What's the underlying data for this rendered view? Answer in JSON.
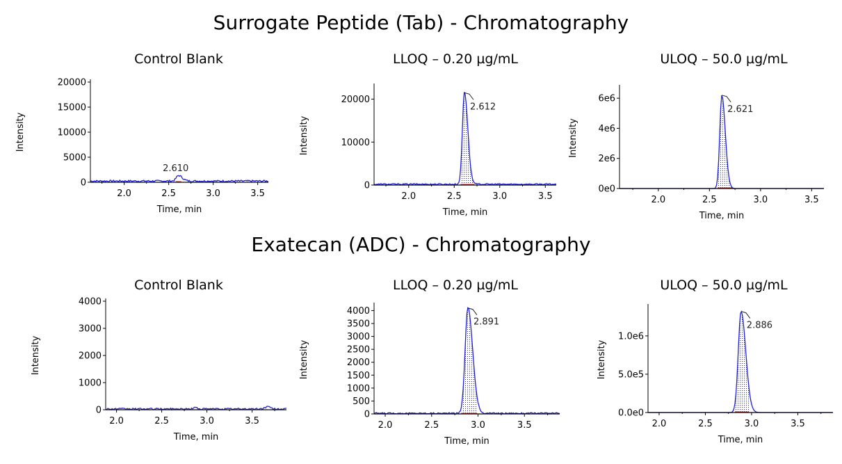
{
  "sections": [
    {
      "title": "Surrogate Peptide (Tab) - Chromatography"
    },
    {
      "title": "Exatecan (ADC) - Chromatography"
    }
  ],
  "colors": {
    "trace": "#1f1fd6",
    "baseline": "#e03030",
    "axis": "#000000"
  },
  "chart_data": [
    {
      "type": "line",
      "title": "Control Blank",
      "xlabel": "Time, min",
      "ylabel": "Intensity",
      "xlim": [
        1.62,
        3.62
      ],
      "ylim": [
        0,
        20000
      ],
      "xticks": [
        2.0,
        2.5,
        3.0,
        3.5
      ],
      "xtick_labels": [
        "2.0",
        "2.5",
        "3.0",
        "3.5"
      ],
      "yticks": [
        0,
        5000,
        10000,
        15000,
        20000
      ],
      "ytick_labels": [
        "0",
        "5000",
        "10000",
        "15000",
        "20000"
      ],
      "peak": {
        "rt": 2.61,
        "label": "2.610",
        "height": 1100,
        "width": 0.025,
        "start": 2.58,
        "end": 2.64,
        "shaded": false
      },
      "noise": {
        "level": 250,
        "amp": 350
      },
      "baseline_integration": {
        "start": 2.58,
        "end": 2.64
      }
    },
    {
      "type": "line",
      "title": "LLOQ – 0.20 µg/mL",
      "xlabel": "Time, min",
      "ylabel": "Intensity",
      "xlim": [
        1.62,
        3.62
      ],
      "ylim": [
        0,
        23000
      ],
      "xticks": [
        2.0,
        2.5,
        3.0,
        3.5
      ],
      "xtick_labels": [
        "2.0",
        "2.5",
        "3.0",
        "3.5"
      ],
      "yticks": [
        0,
        10000,
        20000
      ],
      "ytick_labels": [
        "0",
        "10000",
        "20000"
      ],
      "peak": {
        "rt": 2.612,
        "label": "2.612",
        "height": 21500,
        "width": 0.022,
        "start": 2.57,
        "end": 2.72,
        "shaded": true
      },
      "noise": {
        "level": 200,
        "amp": 300
      },
      "baseline_integration": {
        "start": 2.57,
        "end": 2.72
      }
    },
    {
      "type": "line",
      "title": "ULOQ – 50.0 µg/mL",
      "xlabel": "Time, min",
      "ylabel": "Intensity",
      "xlim": [
        1.62,
        3.62
      ],
      "ylim": [
        0,
        6700000
      ],
      "xticks": [
        2.0,
        2.5,
        3.0,
        3.5
      ],
      "xtick_labels": [
        "2.0",
        "2.5",
        "3.0",
        "3.5"
      ],
      "yticks": [
        0,
        2000000,
        4000000,
        6000000
      ],
      "ytick_labels": [
        "0e0",
        "2e6",
        "4e6",
        "6e6"
      ],
      "peak": {
        "rt": 2.621,
        "label": "2.621",
        "height": 6200000,
        "width": 0.02,
        "start": 2.58,
        "end": 2.72,
        "shaded": true
      },
      "noise": {
        "level": 0,
        "amp": 0
      },
      "baseline_integration": {
        "start": 2.58,
        "end": 2.72
      }
    },
    {
      "type": "line",
      "title": "Control Blank",
      "xlabel": "Time, min",
      "ylabel": "Intensity",
      "xlim": [
        1.88,
        3.88
      ],
      "ylim": [
        0,
        4000
      ],
      "xticks": [
        2.0,
        2.5,
        3.0,
        3.5
      ],
      "xtick_labels": [
        "2.0",
        "2.5",
        "3.0",
        "3.5"
      ],
      "yticks": [
        0,
        1000,
        2000,
        3000,
        4000
      ],
      "ytick_labels": [
        "0",
        "1000",
        "2000",
        "3000",
        "4000"
      ],
      "peak": null,
      "noise": {
        "level": 30,
        "amp": 60
      },
      "baseline_integration": null
    },
    {
      "type": "line",
      "title": "LLOQ – 0.20 µg/mL",
      "xlabel": "Time, min",
      "ylabel": "Intensity",
      "xlim": [
        1.88,
        3.88
      ],
      "ylim": [
        0,
        4200
      ],
      "xticks": [
        2.0,
        2.5,
        3.0,
        3.5
      ],
      "xtick_labels": [
        "2.0",
        "2.5",
        "3.0",
        "3.5"
      ],
      "yticks": [
        0,
        500,
        1000,
        1500,
        2000,
        2500,
        3000,
        3500,
        4000
      ],
      "ytick_labels": [
        "0",
        "500",
        "1000",
        "1500",
        "2000",
        "2500",
        "3000",
        "3500",
        "4000"
      ],
      "peak": {
        "rt": 2.891,
        "label": "2.891",
        "height": 4100,
        "width": 0.03,
        "start": 2.82,
        "end": 2.99,
        "shaded": true
      },
      "noise": {
        "level": 25,
        "amp": 50
      },
      "baseline_integration": {
        "start": 2.82,
        "end": 2.99
      }
    },
    {
      "type": "line",
      "title": "ULOQ – 50.0 µg/mL",
      "xlabel": "Time, min",
      "ylabel": "Intensity",
      "xlim": [
        1.88,
        3.88
      ],
      "ylim": [
        0,
        1380000
      ],
      "xticks": [
        2.0,
        2.5,
        3.0,
        3.5
      ],
      "xtick_labels": [
        "2.0",
        "2.5",
        "3.0",
        "3.5"
      ],
      "yticks": [
        0,
        500000,
        1000000
      ],
      "ytick_labels": [
        "0.0e0",
        "5.0e5",
        "1.0e6"
      ],
      "peak": {
        "rt": 2.886,
        "label": "2.886",
        "height": 1320000,
        "width": 0.03,
        "start": 2.82,
        "end": 2.97,
        "shaded": true
      },
      "noise": {
        "level": 0,
        "amp": 0
      },
      "baseline_integration": {
        "start": 2.82,
        "end": 2.97
      }
    }
  ]
}
